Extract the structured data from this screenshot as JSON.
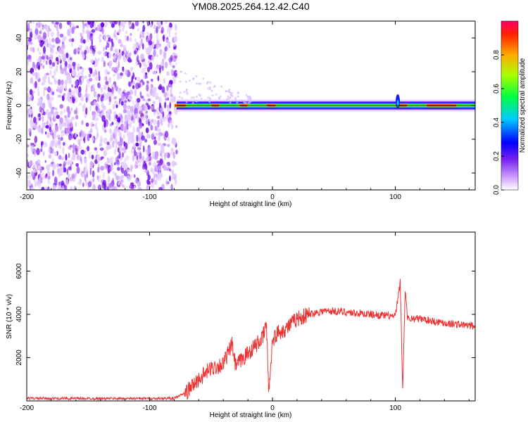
{
  "title": "YM08.2025.264.12.42.C40",
  "chart_data": [
    {
      "type": "heatmap",
      "name": "spectrogram",
      "xlabel": "Height of straight line (km)",
      "ylabel": "Frequency (Hz)",
      "xlim": [
        -200,
        165
      ],
      "ylim": [
        -50,
        50
      ],
      "xticks": [
        -200,
        -100,
        0,
        100
      ],
      "yticks": [
        -40,
        -20,
        0,
        20,
        40
      ],
      "colorbar": {
        "label": "Normalized spectral amplitude",
        "range": [
          0,
          1
        ],
        "ticks": [
          "0.0",
          "0.2",
          "0.4",
          "0.6",
          "0.8"
        ]
      },
      "noise_region_x": [
        -200,
        -78
      ],
      "signal_band": {
        "x": [
          -78,
          165
        ],
        "freq_center": 0,
        "freq_halfwidth": 3,
        "peak_segments": [
          [
            -80,
            -70
          ],
          [
            -50,
            -43
          ],
          [
            -27,
            -20
          ],
          [
            -5,
            3
          ],
          [
            100,
            110
          ],
          [
            125,
            150
          ]
        ],
        "burst_at_x": 102
      }
    },
    {
      "type": "line",
      "name": "snr",
      "xlabel": "Height of straight line (km)",
      "ylabel": "SNR (10 * v/v)",
      "xlim": [
        -200,
        165
      ],
      "ylim": [
        0,
        7800
      ],
      "xticks": [
        -200,
        -100,
        0,
        100
      ],
      "yticks": [
        2000,
        4000,
        6000
      ],
      "color": "#ee3333",
      "series": [
        {
          "name": "SNR",
          "x": [
            -200,
            -150,
            -100,
            -80,
            -70,
            -60,
            -50,
            -40,
            -33,
            -30,
            -25,
            -20,
            -15,
            -8,
            -5,
            -3,
            0,
            5,
            10,
            20,
            30,
            40,
            50,
            60,
            80,
            90,
            100,
            104,
            106,
            108,
            110,
            120,
            140,
            165
          ],
          "y": [
            120,
            110,
            110,
            120,
            400,
            1000,
            1500,
            1700,
            2600,
            1600,
            1900,
            2200,
            2500,
            2900,
            3600,
            400,
            2800,
            3200,
            3300,
            3800,
            4000,
            4150,
            4150,
            4100,
            4000,
            3950,
            3900,
            5500,
            400,
            5200,
            3800,
            3800,
            3600,
            3450
          ]
        }
      ]
    }
  ]
}
